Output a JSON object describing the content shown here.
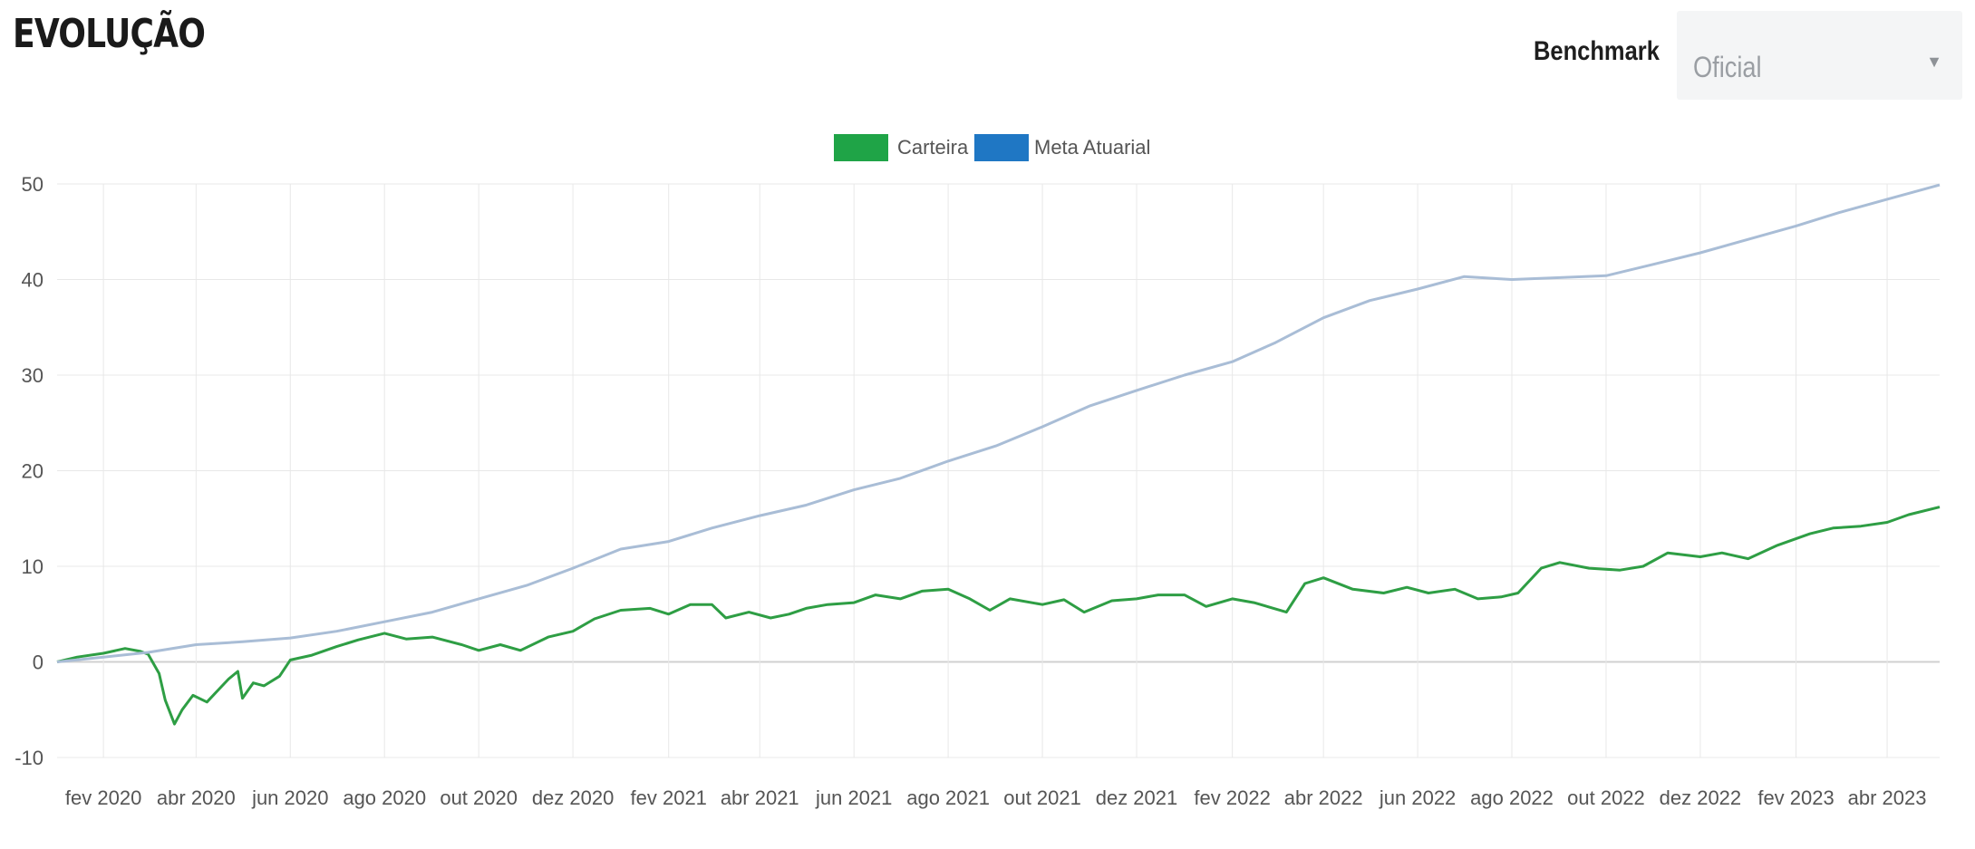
{
  "header": {
    "title": "EVOLUÇÃO",
    "benchmark_label": "Benchmark",
    "benchmark_value": "Oficial",
    "caret_icon": "caret-down-icon"
  },
  "colors": {
    "carteira": "#2e9e44",
    "meta_atuarial": "#a9bdd6",
    "legend_carteira": "#1fa447",
    "legend_meta": "#1f77c4",
    "grid": "#e8e8e8",
    "zero_line": "#d0d0d0"
  },
  "chart_data": {
    "type": "line",
    "title": "",
    "xlabel": "",
    "ylabel": "",
    "ylim": [
      -10,
      50
    ],
    "y_ticks": [
      50,
      40,
      30,
      20,
      10,
      0,
      -10
    ],
    "grid": true,
    "legend_position": "top-center",
    "x_range": [
      "2020-01-02",
      "2023-05-05"
    ],
    "x_ticks": [
      {
        "date": "2020-02-01",
        "label": "fev 2020"
      },
      {
        "date": "2020-04-01",
        "label": "abr 2020"
      },
      {
        "date": "2020-06-01",
        "label": "jun 2020"
      },
      {
        "date": "2020-08-01",
        "label": "ago 2020"
      },
      {
        "date": "2020-10-01",
        "label": "out 2020"
      },
      {
        "date": "2020-12-01",
        "label": "dez 2020"
      },
      {
        "date": "2021-02-01",
        "label": "fev 2021"
      },
      {
        "date": "2021-04-01",
        "label": "abr 2021"
      },
      {
        "date": "2021-06-01",
        "label": "jun 2021"
      },
      {
        "date": "2021-08-01",
        "label": "ago 2021"
      },
      {
        "date": "2021-10-01",
        "label": "out 2021"
      },
      {
        "date": "2021-12-01",
        "label": "dez 2021"
      },
      {
        "date": "2022-02-01",
        "label": "fev 2022"
      },
      {
        "date": "2022-04-01",
        "label": "abr 2022"
      },
      {
        "date": "2022-06-01",
        "label": "jun 2022"
      },
      {
        "date": "2022-08-01",
        "label": "ago 2022"
      },
      {
        "date": "2022-10-01",
        "label": "out 2022"
      },
      {
        "date": "2022-12-01",
        "label": "dez 2022"
      },
      {
        "date": "2023-02-01",
        "label": "fev 2023"
      },
      {
        "date": "2023-04-01",
        "label": "abr 2023"
      }
    ],
    "series": [
      {
        "name": "Carteira",
        "points": [
          [
            "2020-01-02",
            0.0
          ],
          [
            "2020-01-15",
            0.5
          ],
          [
            "2020-02-01",
            0.9
          ],
          [
            "2020-02-15",
            1.4
          ],
          [
            "2020-02-25",
            1.1
          ],
          [
            "2020-03-01",
            0.8
          ],
          [
            "2020-03-08",
            -1.2
          ],
          [
            "2020-03-12",
            -4.0
          ],
          [
            "2020-03-18",
            -6.5
          ],
          [
            "2020-03-23",
            -5.0
          ],
          [
            "2020-03-30",
            -3.5
          ],
          [
            "2020-04-08",
            -4.2
          ],
          [
            "2020-04-15",
            -3.0
          ],
          [
            "2020-04-22",
            -1.8
          ],
          [
            "2020-04-28",
            -1.0
          ],
          [
            "2020-05-01",
            -3.8
          ],
          [
            "2020-05-08",
            -2.2
          ],
          [
            "2020-05-15",
            -2.5
          ],
          [
            "2020-05-25",
            -1.5
          ],
          [
            "2020-06-01",
            0.2
          ],
          [
            "2020-06-15",
            0.7
          ],
          [
            "2020-07-01",
            1.6
          ],
          [
            "2020-07-15",
            2.3
          ],
          [
            "2020-08-01",
            3.0
          ],
          [
            "2020-08-15",
            2.4
          ],
          [
            "2020-09-01",
            2.6
          ],
          [
            "2020-09-20",
            1.8
          ],
          [
            "2020-10-01",
            1.2
          ],
          [
            "2020-10-15",
            1.8
          ],
          [
            "2020-10-28",
            1.2
          ],
          [
            "2020-11-15",
            2.6
          ],
          [
            "2020-12-01",
            3.2
          ],
          [
            "2020-12-15",
            4.5
          ],
          [
            "2021-01-01",
            5.4
          ],
          [
            "2021-01-20",
            5.6
          ],
          [
            "2021-02-01",
            5.0
          ],
          [
            "2021-02-15",
            6.0
          ],
          [
            "2021-03-01",
            6.0
          ],
          [
            "2021-03-10",
            4.6
          ],
          [
            "2021-03-25",
            5.2
          ],
          [
            "2021-04-08",
            4.6
          ],
          [
            "2021-04-20",
            5.0
          ],
          [
            "2021-05-01",
            5.6
          ],
          [
            "2021-05-15",
            6.0
          ],
          [
            "2021-06-01",
            6.2
          ],
          [
            "2021-06-15",
            7.0
          ],
          [
            "2021-07-01",
            6.6
          ],
          [
            "2021-07-15",
            7.4
          ],
          [
            "2021-08-01",
            7.6
          ],
          [
            "2021-08-15",
            6.6
          ],
          [
            "2021-08-28",
            5.4
          ],
          [
            "2021-09-10",
            6.6
          ],
          [
            "2021-10-01",
            6.0
          ],
          [
            "2021-10-15",
            6.5
          ],
          [
            "2021-10-28",
            5.2
          ],
          [
            "2021-11-15",
            6.4
          ],
          [
            "2021-12-01",
            6.6
          ],
          [
            "2021-12-15",
            7.0
          ],
          [
            "2022-01-01",
            7.0
          ],
          [
            "2022-01-15",
            5.8
          ],
          [
            "2022-02-01",
            6.6
          ],
          [
            "2022-02-15",
            6.2
          ],
          [
            "2022-03-08",
            5.2
          ],
          [
            "2022-03-20",
            8.2
          ],
          [
            "2022-04-01",
            8.8
          ],
          [
            "2022-04-20",
            7.6
          ],
          [
            "2022-05-10",
            7.2
          ],
          [
            "2022-05-25",
            7.8
          ],
          [
            "2022-06-08",
            7.2
          ],
          [
            "2022-06-25",
            7.6
          ],
          [
            "2022-07-10",
            6.6
          ],
          [
            "2022-07-25",
            6.8
          ],
          [
            "2022-08-05",
            7.2
          ],
          [
            "2022-08-20",
            9.8
          ],
          [
            "2022-09-01",
            10.4
          ],
          [
            "2022-09-20",
            9.8
          ],
          [
            "2022-10-10",
            9.6
          ],
          [
            "2022-10-25",
            10.0
          ],
          [
            "2022-11-10",
            11.4
          ],
          [
            "2022-12-01",
            11.0
          ],
          [
            "2022-12-15",
            11.4
          ],
          [
            "2023-01-01",
            10.8
          ],
          [
            "2023-01-20",
            12.2
          ],
          [
            "2023-02-10",
            13.4
          ],
          [
            "2023-02-25",
            14.0
          ],
          [
            "2023-03-15",
            14.2
          ],
          [
            "2023-04-01",
            14.6
          ],
          [
            "2023-04-15",
            15.4
          ],
          [
            "2023-05-05",
            16.2
          ]
        ]
      },
      {
        "name": "Meta Atuarial",
        "points": [
          [
            "2020-01-02",
            0.0
          ],
          [
            "2020-02-01",
            0.5
          ],
          [
            "2020-03-01",
            1.0
          ],
          [
            "2020-04-01",
            1.8
          ],
          [
            "2020-05-01",
            2.1
          ],
          [
            "2020-06-01",
            2.5
          ],
          [
            "2020-07-01",
            3.2
          ],
          [
            "2020-08-01",
            4.2
          ],
          [
            "2020-09-01",
            5.2
          ],
          [
            "2020-10-01",
            6.6
          ],
          [
            "2020-11-01",
            8.0
          ],
          [
            "2020-12-01",
            9.8
          ],
          [
            "2021-01-01",
            11.8
          ],
          [
            "2021-02-01",
            12.6
          ],
          [
            "2021-03-01",
            14.0
          ],
          [
            "2021-04-01",
            15.3
          ],
          [
            "2021-05-01",
            16.4
          ],
          [
            "2021-06-01",
            18.0
          ],
          [
            "2021-07-01",
            19.2
          ],
          [
            "2021-08-01",
            21.0
          ],
          [
            "2021-09-01",
            22.6
          ],
          [
            "2021-10-01",
            24.6
          ],
          [
            "2021-11-01",
            26.8
          ],
          [
            "2021-12-01",
            28.4
          ],
          [
            "2022-01-01",
            30.0
          ],
          [
            "2022-02-01",
            31.4
          ],
          [
            "2022-03-01",
            33.4
          ],
          [
            "2022-04-01",
            36.0
          ],
          [
            "2022-05-01",
            37.8
          ],
          [
            "2022-06-01",
            39.0
          ],
          [
            "2022-07-01",
            40.3
          ],
          [
            "2022-08-01",
            40.0
          ],
          [
            "2022-09-01",
            40.2
          ],
          [
            "2022-10-01",
            40.4
          ],
          [
            "2022-11-01",
            41.6
          ],
          [
            "2022-12-01",
            42.8
          ],
          [
            "2023-01-01",
            44.2
          ],
          [
            "2023-02-01",
            45.6
          ],
          [
            "2023-03-01",
            47.0
          ],
          [
            "2023-04-01",
            48.4
          ],
          [
            "2023-05-05",
            49.9
          ]
        ]
      }
    ]
  }
}
